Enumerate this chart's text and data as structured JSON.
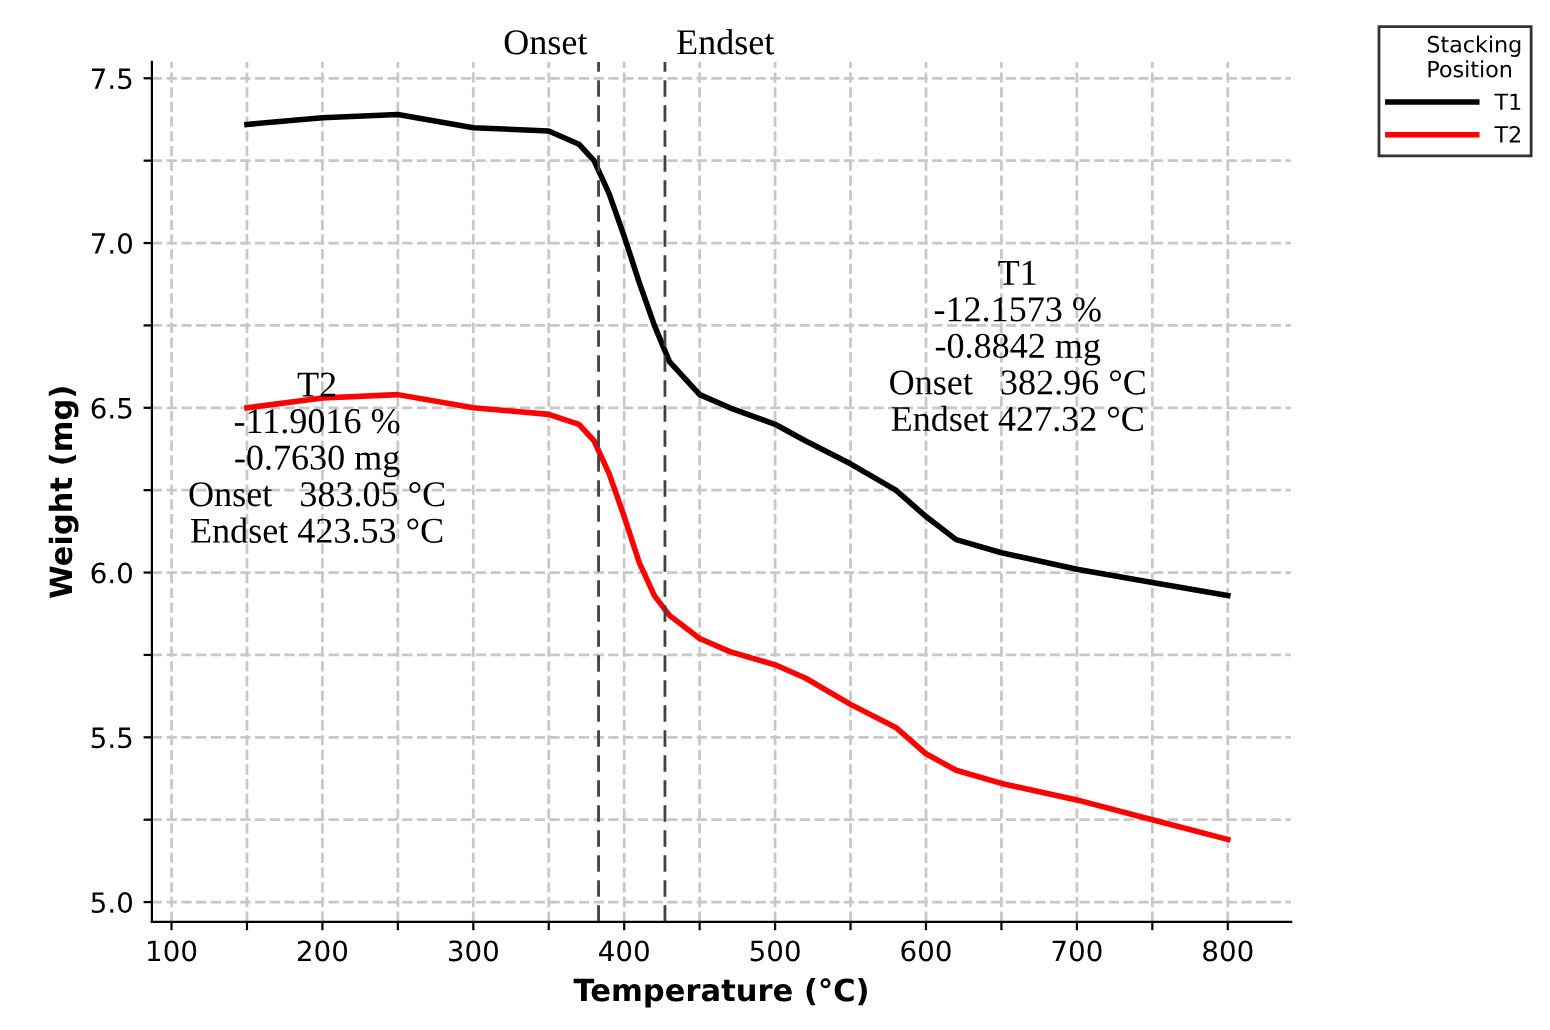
{
  "chart_data": {
    "type": "line",
    "xlabel": "Temperature (°C)",
    "ylabel": "Weight (mg)",
    "legend_title": "Stacking\nPosition",
    "xlim": [
      87,
      842
    ],
    "ylim": [
      4.94,
      7.55
    ],
    "xticks": [
      100,
      {
        "value": 150,
        "label": null
      },
      200,
      {
        "value": 250,
        "label": null
      },
      300,
      {
        "value": 350,
        "label": null
      },
      400,
      {
        "value": 450,
        "label": null
      },
      500,
      {
        "value": 550,
        "label": null
      },
      600,
      {
        "value": 650,
        "label": null
      },
      700,
      {
        "value": 750,
        "label": null
      },
      800
    ],
    "yticks": [
      {
        "value": 5.0,
        "label": "5.0"
      },
      {
        "value": 5.25,
        "label": null
      },
      {
        "value": 5.5,
        "label": "5.5"
      },
      {
        "value": 5.75,
        "label": null
      },
      {
        "value": 6.0,
        "label": "6.0"
      },
      {
        "value": 6.25,
        "label": null
      },
      {
        "value": 6.5,
        "label": "6.5"
      },
      {
        "value": 6.75,
        "label": null
      },
      {
        "value": 7.0,
        "label": "7.0"
      },
      {
        "value": 7.25,
        "label": null
      },
      {
        "value": 7.5,
        "label": "7.5"
      }
    ],
    "x": [
      150,
      200,
      250,
      300,
      350,
      370,
      380,
      390,
      400,
      410,
      420,
      430,
      450,
      470,
      500,
      520,
      550,
      580,
      600,
      620,
      650,
      700,
      750,
      800
    ],
    "series": [
      {
        "name": "T1",
        "color": "#000000",
        "values": [
          7.36,
          7.38,
          7.39,
          7.35,
          7.34,
          7.3,
          7.25,
          7.15,
          7.02,
          6.88,
          6.75,
          6.64,
          6.54,
          6.5,
          6.45,
          6.4,
          6.33,
          6.25,
          6.17,
          6.1,
          6.06,
          6.01,
          5.97,
          5.93
        ]
      },
      {
        "name": "T2",
        "color": "#ff0000",
        "values": [
          6.5,
          6.53,
          6.54,
          6.5,
          6.48,
          6.45,
          6.4,
          6.3,
          6.17,
          6.03,
          5.93,
          5.87,
          5.8,
          5.76,
          5.72,
          5.68,
          5.6,
          5.53,
          5.45,
          5.4,
          5.36,
          5.31,
          5.25,
          5.19
        ]
      }
    ],
    "ref_lines": [
      {
        "axis": "x",
        "value": 383,
        "label": "Onset",
        "color": "#404040",
        "line_style": "dashed"
      },
      {
        "axis": "x",
        "value": 427,
        "label": "Endset",
        "color": "#404040",
        "line_style": "dashed"
      }
    ],
    "annotations": [
      "T1\n-12.1573 %\n-0.8842 mg\nOnset   382.96 °C\nEndset 427.32 °C",
      "T2\n-11.9016 %\n-0.7630 mg\nOnset   383.05 °C\nEndset 423.53 °C"
    ],
    "grid": true,
    "legend": "top right",
    "marker": "none",
    "line_style": "solid"
  }
}
